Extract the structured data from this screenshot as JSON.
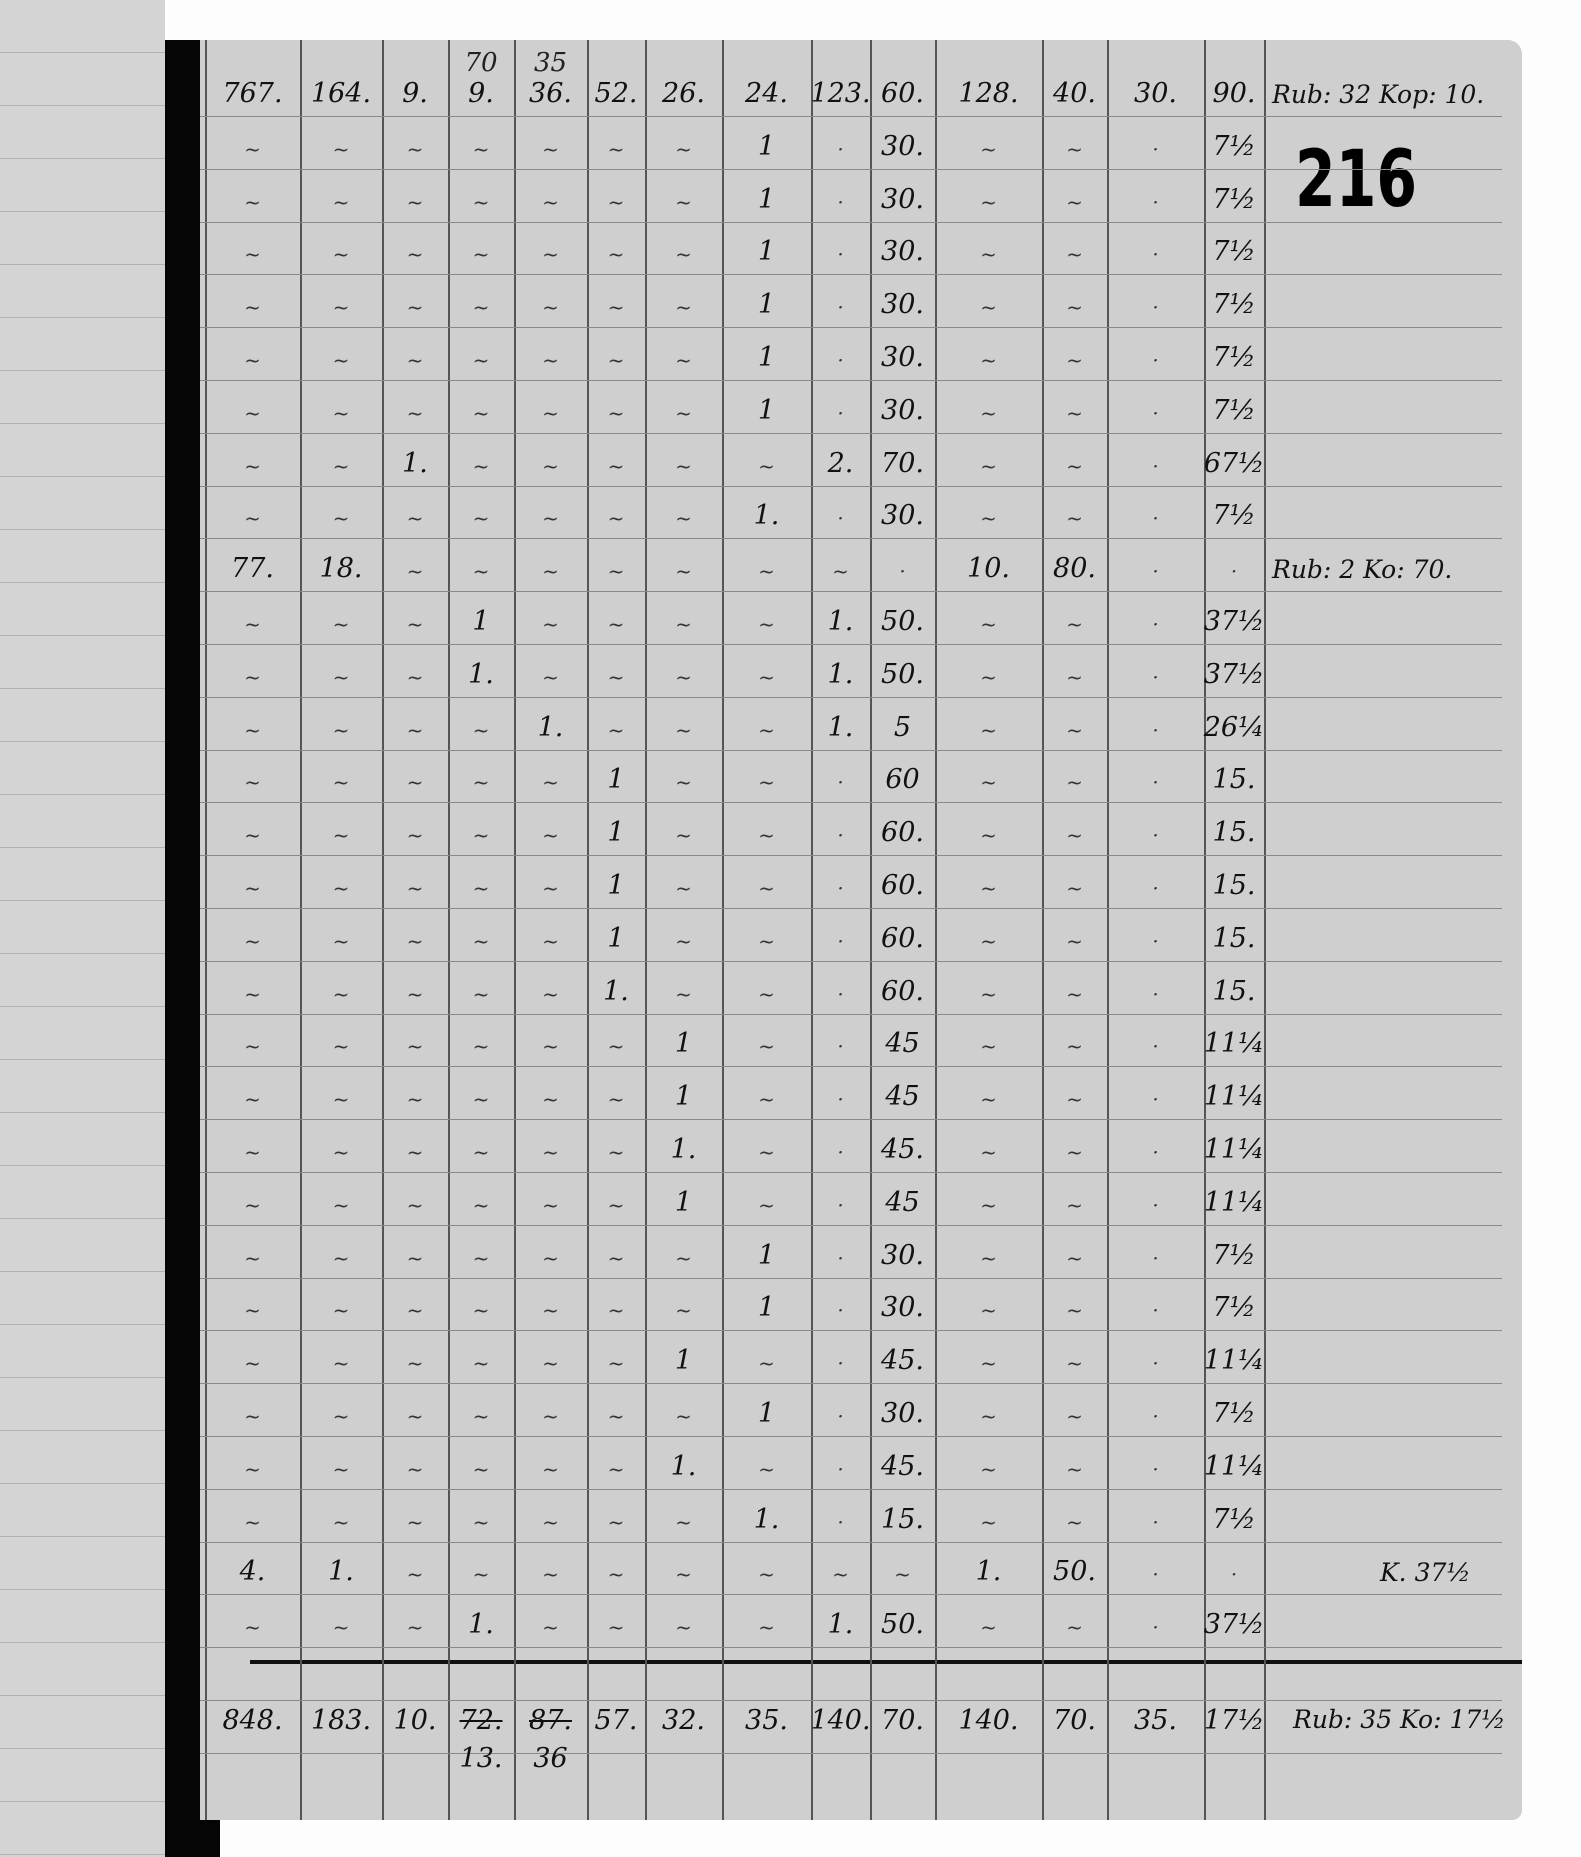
{
  "folio_number": "216",
  "columns": 14,
  "superscripts": [
    {
      "col": 4,
      "text": "70"
    },
    {
      "col": 5,
      "text": "35"
    }
  ],
  "rows": [
    {
      "cells": [
        "767.",
        "164.",
        "9.",
        "9.",
        "36.",
        "52.",
        "26.",
        "24.",
        "123.",
        "60.",
        "128.",
        "40.",
        "30.",
        "90."
      ],
      "note": "Rub: 32 Kop: 10."
    },
    {
      "cells": [
        "~",
        "~",
        "~",
        "~",
        "~",
        "~",
        "~",
        "1",
        "·",
        "30.",
        "~",
        "~",
        "·",
        "7½"
      ]
    },
    {
      "cells": [
        "~",
        "~",
        "~",
        "~",
        "~",
        "~",
        "~",
        "1",
        "·",
        "30.",
        "~",
        "~",
        "·",
        "7½"
      ]
    },
    {
      "cells": [
        "~",
        "~",
        "~",
        "~",
        "~",
        "~",
        "~",
        "1",
        "·",
        "30.",
        "~",
        "~",
        "·",
        "7½"
      ]
    },
    {
      "cells": [
        "~",
        "~",
        "~",
        "~",
        "~",
        "~",
        "~",
        "1",
        "·",
        "30.",
        "~",
        "~",
        "·",
        "7½"
      ]
    },
    {
      "cells": [
        "~",
        "~",
        "~",
        "~",
        "~",
        "~",
        "~",
        "1",
        "·",
        "30.",
        "~",
        "~",
        "·",
        "7½"
      ]
    },
    {
      "cells": [
        "~",
        "~",
        "~",
        "~",
        "~",
        "~",
        "~",
        "1",
        "·",
        "30.",
        "~",
        "~",
        "·",
        "7½"
      ]
    },
    {
      "cells": [
        "~",
        "~",
        "1.",
        "~",
        "~",
        "~",
        "~",
        "~",
        "2.",
        "70.",
        "~",
        "~",
        "·",
        "67½"
      ]
    },
    {
      "cells": [
        "~",
        "~",
        "~",
        "~",
        "~",
        "~",
        "~",
        "1.",
        "·",
        "30.",
        "~",
        "~",
        "·",
        "7½"
      ]
    },
    {
      "cells": [
        "77.",
        "18.",
        "~",
        "~",
        "~",
        "~",
        "~",
        "~",
        "~",
        "·",
        "10.",
        "80.",
        "·",
        "·"
      ],
      "note": "Rub: 2 Ko: 70."
    },
    {
      "cells": [
        "~",
        "~",
        "~",
        "1",
        "~",
        "~",
        "~",
        "~",
        "1.",
        "50.",
        "~",
        "~",
        "·",
        "37½"
      ]
    },
    {
      "cells": [
        "~",
        "~",
        "~",
        "1.",
        "~",
        "~",
        "~",
        "~",
        "1.",
        "50.",
        "~",
        "~",
        "·",
        "37½"
      ]
    },
    {
      "cells": [
        "~",
        "~",
        "~",
        "~",
        "1.",
        "~",
        "~",
        "~",
        "1.",
        "5",
        "~",
        "~",
        "·",
        "26¼"
      ]
    },
    {
      "cells": [
        "~",
        "~",
        "~",
        "~",
        "~",
        "1",
        "~",
        "~",
        "·",
        "60",
        "~",
        "~",
        "·",
        "15."
      ]
    },
    {
      "cells": [
        "~",
        "~",
        "~",
        "~",
        "~",
        "1",
        "~",
        "~",
        "·",
        "60.",
        "~",
        "~",
        "·",
        "15."
      ]
    },
    {
      "cells": [
        "~",
        "~",
        "~",
        "~",
        "~",
        "1",
        "~",
        "~",
        "·",
        "60.",
        "~",
        "~",
        "·",
        "15."
      ]
    },
    {
      "cells": [
        "~",
        "~",
        "~",
        "~",
        "~",
        "1",
        "~",
        "~",
        "·",
        "60.",
        "~",
        "~",
        "·",
        "15."
      ]
    },
    {
      "cells": [
        "~",
        "~",
        "~",
        "~",
        "~",
        "1.",
        "~",
        "~",
        "·",
        "60.",
        "~",
        "~",
        "·",
        "15."
      ]
    },
    {
      "cells": [
        "~",
        "~",
        "~",
        "~",
        "~",
        "~",
        "1",
        "~",
        "·",
        "45",
        "~",
        "~",
        "·",
        "11¼"
      ]
    },
    {
      "cells": [
        "~",
        "~",
        "~",
        "~",
        "~",
        "~",
        "1",
        "~",
        "·",
        "45",
        "~",
        "~",
        "·",
        "11¼"
      ]
    },
    {
      "cells": [
        "~",
        "~",
        "~",
        "~",
        "~",
        "~",
        "1.",
        "~",
        "·",
        "45.",
        "~",
        "~",
        "·",
        "11¼"
      ]
    },
    {
      "cells": [
        "~",
        "~",
        "~",
        "~",
        "~",
        "~",
        "1",
        "~",
        "·",
        "45",
        "~",
        "~",
        "·",
        "11¼"
      ]
    },
    {
      "cells": [
        "~",
        "~",
        "~",
        "~",
        "~",
        "~",
        "~",
        "1",
        "·",
        "30.",
        "~",
        "~",
        "·",
        "7½"
      ]
    },
    {
      "cells": [
        "~",
        "~",
        "~",
        "~",
        "~",
        "~",
        "~",
        "1",
        "·",
        "30.",
        "~",
        "~",
        "·",
        "7½"
      ]
    },
    {
      "cells": [
        "~",
        "~",
        "~",
        "~",
        "~",
        "~",
        "1",
        "~",
        "·",
        "45.",
        "~",
        "~",
        "·",
        "11¼"
      ]
    },
    {
      "cells": [
        "~",
        "~",
        "~",
        "~",
        "~",
        "~",
        "~",
        "1",
        "·",
        "30.",
        "~",
        "~",
        "·",
        "7½"
      ]
    },
    {
      "cells": [
        "~",
        "~",
        "~",
        "~",
        "~",
        "~",
        "1.",
        "~",
        "·",
        "45.",
        "~",
        "~",
        "·",
        "11¼"
      ]
    },
    {
      "cells": [
        "~",
        "~",
        "~",
        "~",
        "~",
        "~",
        "~",
        "1.",
        "·",
        "15.",
        "~",
        "~",
        "·",
        "7½"
      ]
    },
    {
      "cells": [
        "4.",
        "1.",
        "~",
        "~",
        "~",
        "~",
        "~",
        "~",
        "~",
        "~",
        "1.",
        "50.",
        "·",
        "·"
      ],
      "note": "K. 37½"
    },
    {
      "cells": [
        "~",
        "~",
        "~",
        "1.",
        "~",
        "~",
        "~",
        "~",
        "1.",
        "50.",
        "~",
        "~",
        "·",
        "37½"
      ]
    }
  ],
  "totals": {
    "cells": [
      "848.",
      "183.",
      "10.",
      "72.",
      "87.",
      "57.",
      "32.",
      "35.",
      "140.",
      "70.",
      "140.",
      "70.",
      "35.",
      "17½"
    ],
    "struck": [
      4,
      5
    ],
    "corrections": [
      {
        "col": 4,
        "text": "13."
      },
      {
        "col": 5,
        "text": "36"
      }
    ],
    "note": "Rub: 35 Ko: 17½"
  }
}
